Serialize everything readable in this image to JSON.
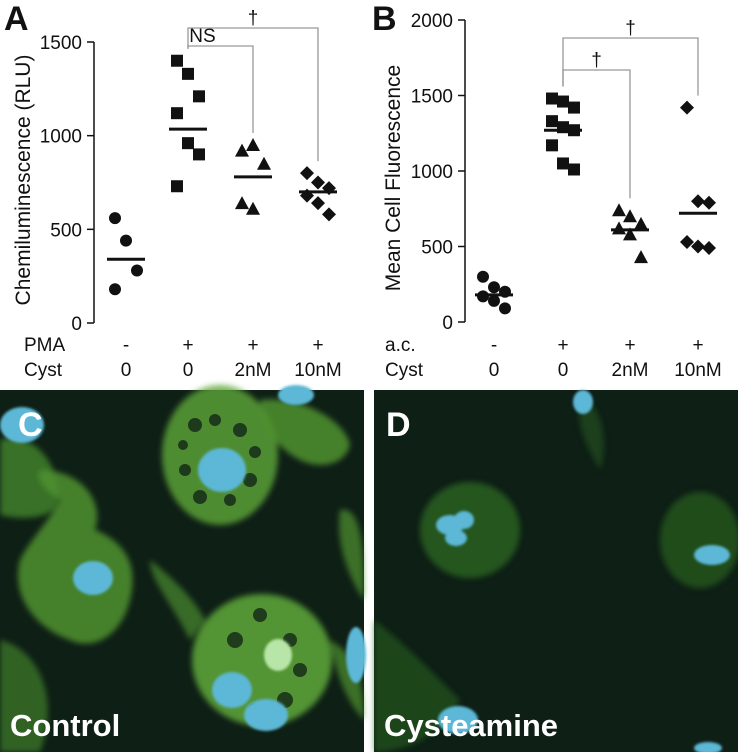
{
  "chart_data": [
    {
      "type": "scatter",
      "panel": "A",
      "ylabel": "Chemiluminescence (RLU)",
      "ylim": [
        0,
        1500
      ],
      "yticks": [
        0,
        500,
        1000,
        1500
      ],
      "condition_rows": [
        {
          "label": "PMA",
          "values": [
            "-",
            "+",
            "+",
            "+"
          ]
        },
        {
          "label": "Cyst",
          "values": [
            "0",
            "0",
            "2nM",
            "10nM"
          ]
        }
      ],
      "groups": [
        {
          "marker": "circle",
          "mean": 340,
          "points": [
            560,
            440,
            280,
            180
          ]
        },
        {
          "marker": "square",
          "mean": 1035,
          "points": [
            1400,
            1330,
            1210,
            1120,
            960,
            900,
            730
          ]
        },
        {
          "marker": "triangle",
          "mean": 780,
          "points": [
            920,
            950,
            850,
            640,
            610
          ]
        },
        {
          "marker": "diamond",
          "mean": 700,
          "points": [
            800,
            750,
            720,
            680,
            640,
            580
          ]
        }
      ],
      "comparisons": [
        {
          "from": 1,
          "to": 2,
          "label": "NS"
        },
        {
          "from": 1,
          "to": 3,
          "label": "†"
        }
      ]
    },
    {
      "type": "scatter",
      "panel": "B",
      "ylabel": "Mean Cell Fluorescence",
      "ylim": [
        0,
        2000
      ],
      "yticks": [
        0,
        500,
        1000,
        1500,
        2000
      ],
      "condition_rows": [
        {
          "label": "a.c.",
          "values": [
            "-",
            "+",
            "+",
            "+"
          ]
        },
        {
          "label": "Cyst",
          "values": [
            "0",
            "0",
            "2nM",
            "10nM"
          ]
        }
      ],
      "groups": [
        {
          "marker": "circle",
          "mean": 180,
          "points": [
            300,
            230,
            200,
            170,
            140,
            90
          ]
        },
        {
          "marker": "square",
          "mean": 1270,
          "points": [
            1480,
            1460,
            1420,
            1330,
            1290,
            1270,
            1170,
            1050,
            1010
          ]
        },
        {
          "marker": "triangle",
          "mean": 610,
          "points": [
            740,
            700,
            650,
            620,
            580,
            430
          ]
        },
        {
          "marker": "diamond",
          "mean": 720,
          "points": [
            1420,
            800,
            790,
            530,
            500,
            490
          ]
        }
      ],
      "comparisons": [
        {
          "from": 1,
          "to": 2,
          "label": "†"
        },
        {
          "from": 1,
          "to": 3,
          "label": "†"
        }
      ]
    }
  ],
  "micrographs": [
    {
      "panel": "C",
      "caption": "Control"
    },
    {
      "panel": "D",
      "caption": "Cysteamine"
    }
  ],
  "colors": {
    "marker": "#111111",
    "micro_background": "#0e1f16",
    "cytoplasm": "#5fa83a",
    "nucleus": "#5cb8d6"
  }
}
